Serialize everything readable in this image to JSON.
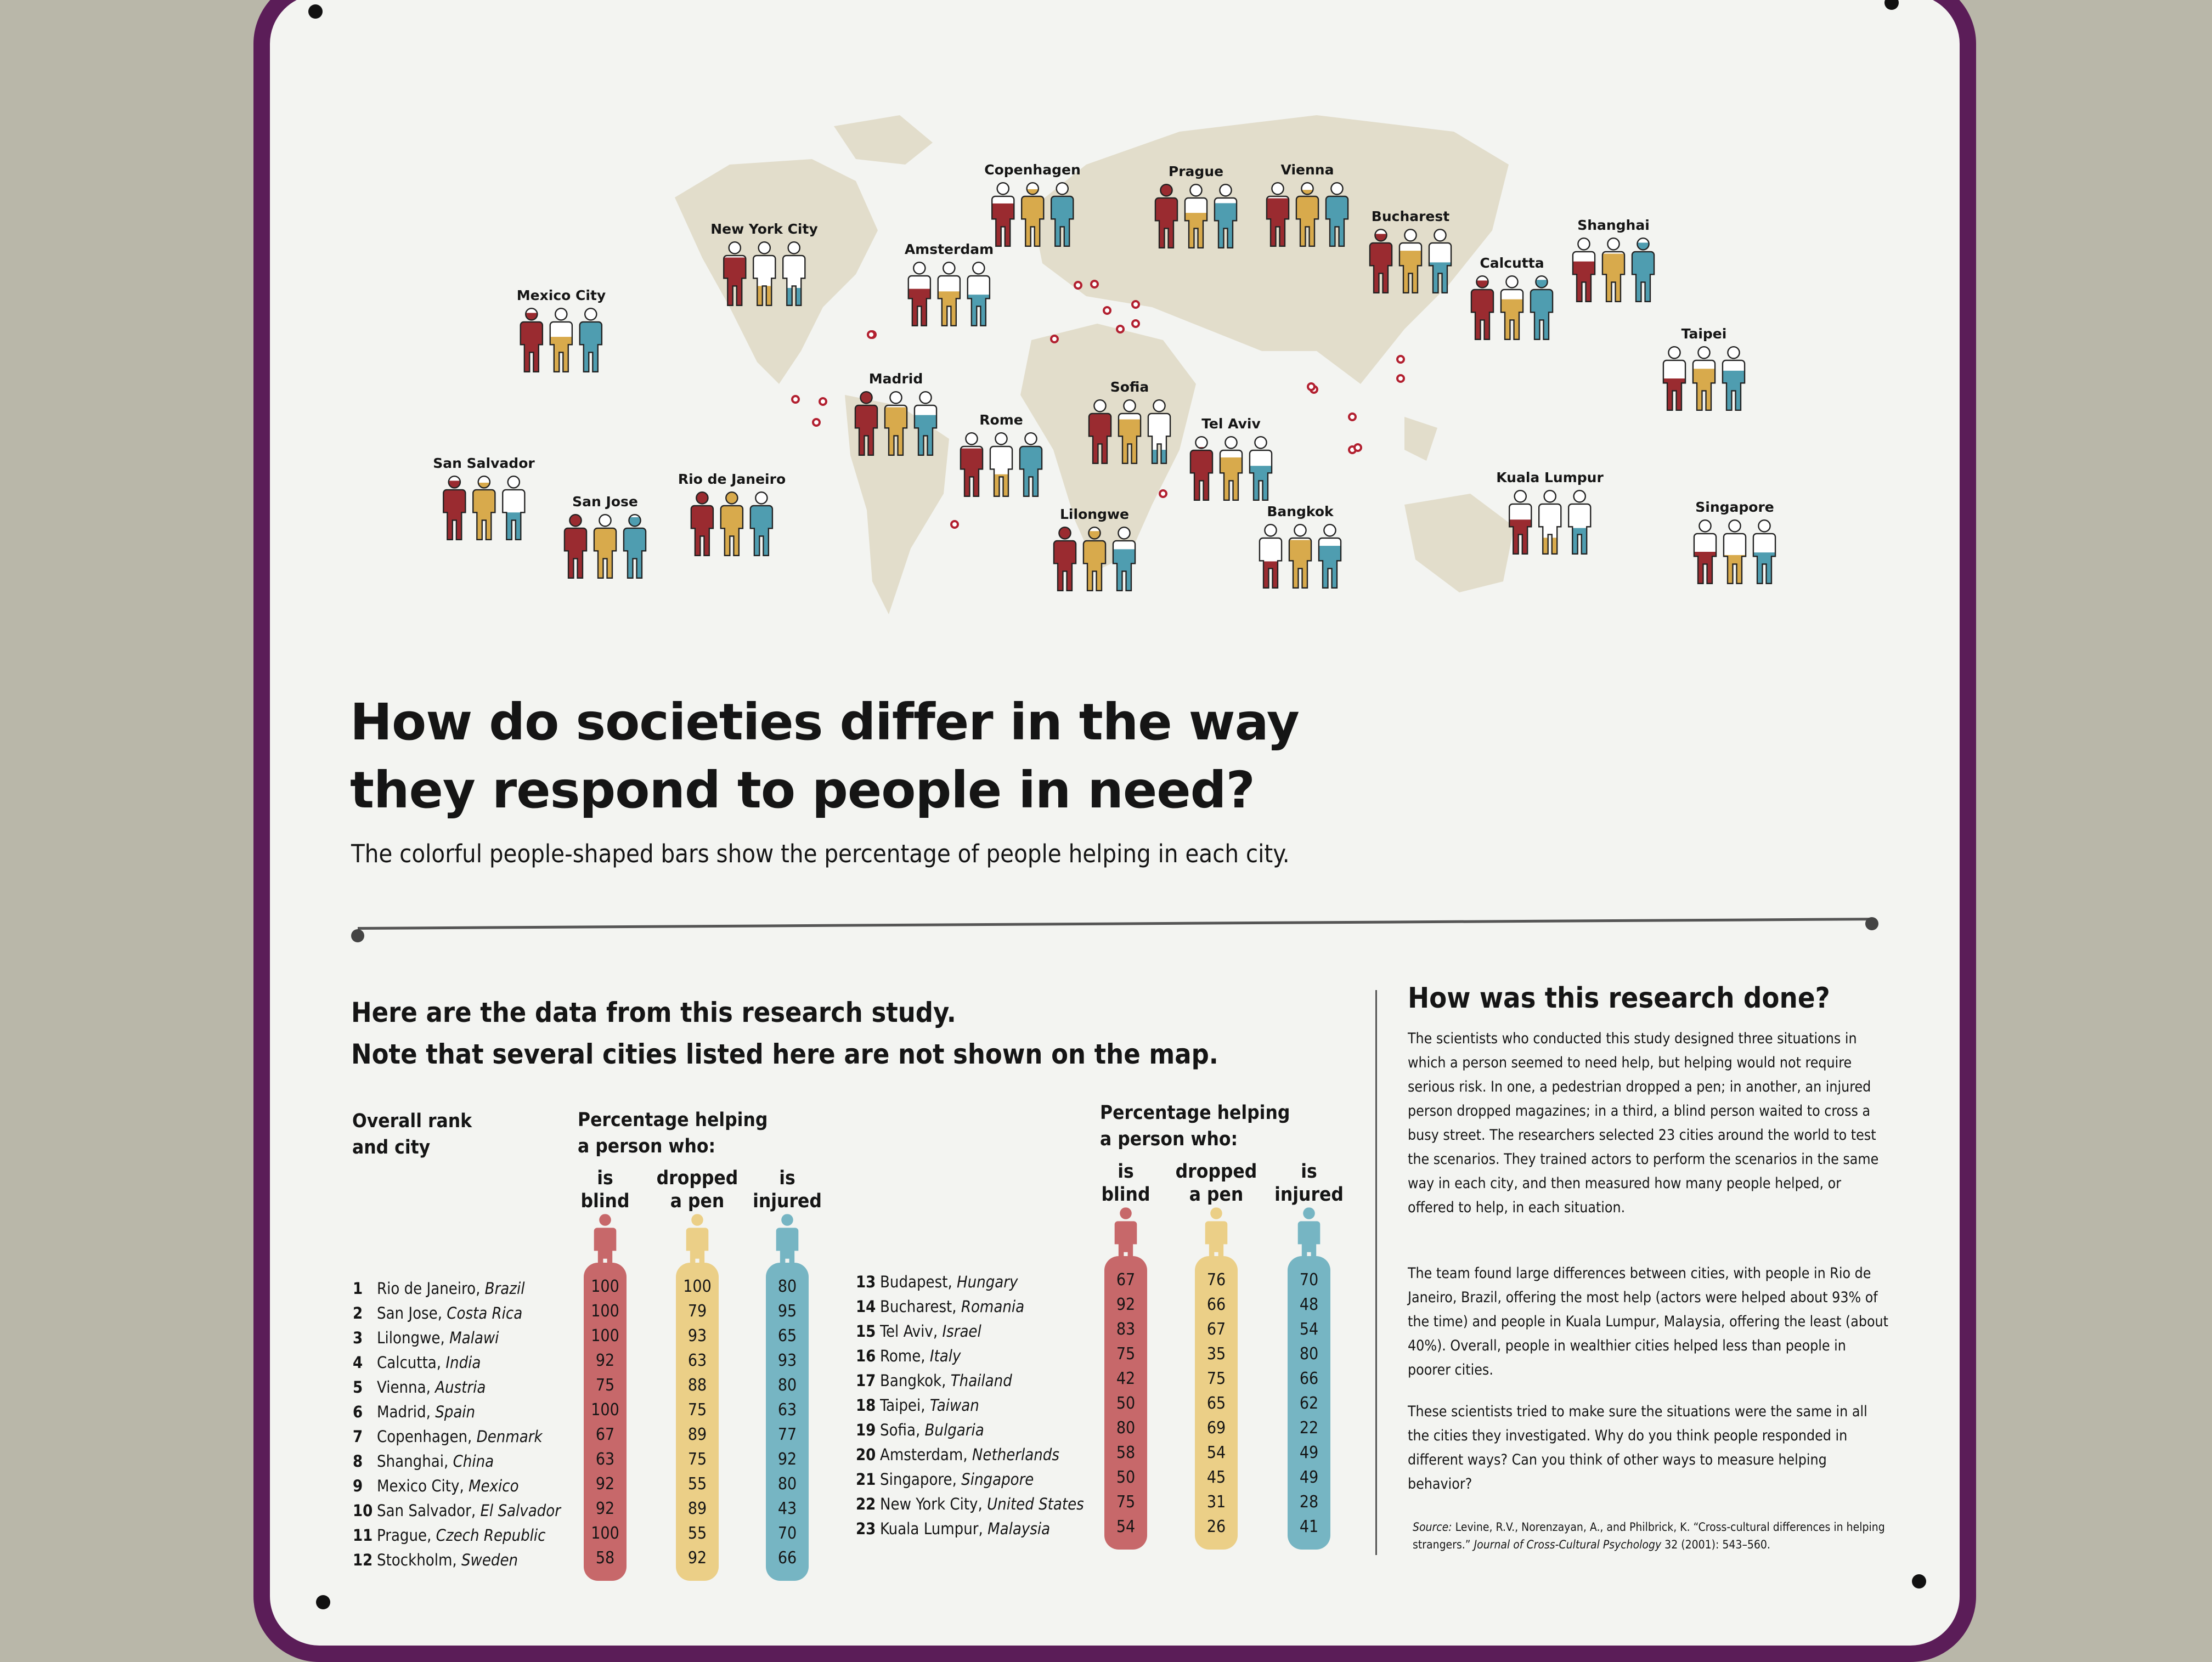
{
  "colors": {
    "blind": "#c7686a",
    "pen": "#ebcf87",
    "injured": "#76b5c3",
    "map_blind": "#9a2b30",
    "map_pen": "#d8aa4c",
    "map_injured": "#4f9db0",
    "board_border": "#5b1d58",
    "land": "#e2ddcb"
  },
  "map": {
    "cities": [
      "Copenhagen",
      "Prague",
      "Vienna",
      "New York City",
      "Amsterdam",
      "Bucharest",
      "Shanghai",
      "Calcutta",
      "Mexico City",
      "Taipei",
      "Madrid",
      "Sofia",
      "Rome",
      "Tel Aviv",
      "San Salvador",
      "San Jose",
      "Rio de Janeiro",
      "Kuala Lumpur",
      "Singapore",
      "Lilongwe",
      "Bangkok"
    ]
  },
  "title_line1": "How do societies differ in the way",
  "title_line2": "they respond to people in need?",
  "subtitle": "The colorful people-shaped bars show the percentage of people helping in each city.",
  "data_heading_line1": "Here are the data from this research study.",
  "data_heading_line2": "Note that several cities listed here are not shown on the map.",
  "headers": {
    "rank_line1": "Overall rank",
    "rank_line2": "and city",
    "pct_line1": "Percentage helping",
    "pct_line2": "a person who:",
    "blind": [
      "is",
      "blind"
    ],
    "pen": [
      "dropped",
      "a pen"
    ],
    "injured": [
      "is",
      "injured"
    ]
  },
  "table_left": [
    {
      "rank": "1",
      "city": "Rio de Janeiro",
      "country": "Brazil",
      "blind": 100,
      "pen": 100,
      "injured": 80
    },
    {
      "rank": "2",
      "city": "San Jose",
      "country": "Costa Rica",
      "blind": 100,
      "pen": 79,
      "injured": 95
    },
    {
      "rank": "3",
      "city": "Lilongwe",
      "country": "Malawi",
      "blind": 100,
      "pen": 93,
      "injured": 65
    },
    {
      "rank": "4",
      "city": "Calcutta",
      "country": "India",
      "blind": 92,
      "pen": 63,
      "injured": 93
    },
    {
      "rank": "5",
      "city": "Vienna",
      "country": "Austria",
      "blind": 75,
      "pen": 88,
      "injured": 80
    },
    {
      "rank": "6",
      "city": "Madrid",
      "country": "Spain",
      "blind": 100,
      "pen": 75,
      "injured": 63
    },
    {
      "rank": "7",
      "city": "Copenhagen",
      "country": "Denmark",
      "blind": 67,
      "pen": 89,
      "injured": 77
    },
    {
      "rank": "8",
      "city": "Shanghai",
      "country": "China",
      "blind": 63,
      "pen": 75,
      "injured": 92
    },
    {
      "rank": "9",
      "city": "Mexico City",
      "country": "Mexico",
      "blind": 92,
      "pen": 55,
      "injured": 80
    },
    {
      "rank": "10",
      "city": "San Salvador",
      "country": "El Salvador",
      "blind": 92,
      "pen": 89,
      "injured": 43
    },
    {
      "rank": "11",
      "city": "Prague",
      "country": "Czech Republic",
      "blind": 100,
      "pen": 55,
      "injured": 70
    },
    {
      "rank": "12",
      "city": "Stockholm",
      "country": "Sweden",
      "blind": 58,
      "pen": 92,
      "injured": 66
    }
  ],
  "table_right": [
    {
      "rank": "13",
      "city": "Budapest",
      "country": "Hungary",
      "blind": 67,
      "pen": 76,
      "injured": 70
    },
    {
      "rank": "14",
      "city": "Bucharest",
      "country": "Romania",
      "blind": 92,
      "pen": 66,
      "injured": 48
    },
    {
      "rank": "15",
      "city": "Tel Aviv",
      "country": "Israel",
      "blind": 83,
      "pen": 67,
      "injured": 54
    },
    {
      "rank": "16",
      "city": "Rome",
      "country": "Italy",
      "blind": 75,
      "pen": 35,
      "injured": 80
    },
    {
      "rank": "17",
      "city": "Bangkok",
      "country": "Thailand",
      "blind": 42,
      "pen": 75,
      "injured": 66
    },
    {
      "rank": "18",
      "city": "Taipei",
      "country": "Taiwan",
      "blind": 50,
      "pen": 65,
      "injured": 62
    },
    {
      "rank": "19",
      "city": "Sofia",
      "country": "Bulgaria",
      "blind": 80,
      "pen": 69,
      "injured": 22
    },
    {
      "rank": "20",
      "city": "Amsterdam",
      "country": "Netherlands",
      "blind": 58,
      "pen": 54,
      "injured": 49
    },
    {
      "rank": "21",
      "city": "Singapore",
      "country": "Singapore",
      "blind": 50,
      "pen": 45,
      "injured": 49
    },
    {
      "rank": "22",
      "city": "New York City",
      "country": "United States",
      "blind": 75,
      "pen": 31,
      "injured": 28
    },
    {
      "rank": "23",
      "city": "Kuala Lumpur",
      "country": "Malaysia",
      "blind": 54,
      "pen": 26,
      "injured": 41
    }
  ],
  "how": {
    "title": "How was this research done?",
    "p1": "The scientists who conducted this study designed three situations in which a person seemed to need help, but helping would not require serious risk. In one, a pedestrian dropped a pen; in another, an injured person dropped magazines; in a third, a blind person waited to cross a busy street. The researchers selected 23 cities around the world to test the scenarios. They trained actors to perform the scenarios in the same way in each city, and then measured how many people helped, or offered to help, in each situation.",
    "p2": "The team found large differences between cities, with people in Rio de Janeiro, Brazil, offering the most help (actors were helped about 93% of the time) and people in Kuala Lumpur, Malaysia, offering the least (about 40%). Overall, people in wealthier cities helped less than people in poorer cities.",
    "p3": "These scientists tried to make sure the situations were the same in all the cities they investigated. Why do you think people responded in different ways? Can you think of other ways to measure helping behavior?",
    "source_label": "Source:",
    "source_text1": " Levine, R.V., Norenzayan, A., and Philbrick, K. “Cross-cultural differences in helping strangers.” ",
    "source_journal": "Journal of Cross-Cultural Psychology",
    "source_text2": " 32 (2001): 543–560."
  }
}
